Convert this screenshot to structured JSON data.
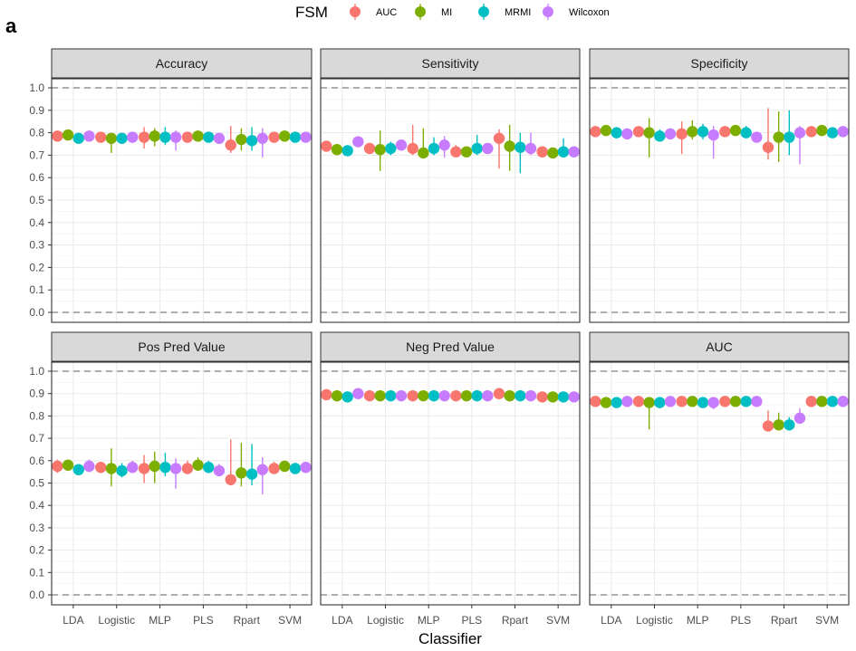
{
  "panel_tag": "a",
  "legend": {
    "title": "FSM",
    "entries": [
      {
        "label": "AUC",
        "color": "#F8766D"
      },
      {
        "label": "MI",
        "color": "#7CAE00"
      },
      {
        "label": "MRMI",
        "color": "#00BFC4"
      },
      {
        "label": "Wilcoxon",
        "color": "#C77CFF"
      }
    ]
  },
  "chart_data": {
    "type": "scatter",
    "subtype": "faceted point-range",
    "xlabel": "Classifier",
    "ylabel": "",
    "categories": [
      "LDA",
      "Logistic",
      "MLP",
      "PLS",
      "Rpart",
      "SVM"
    ],
    "ylim": [
      0,
      1
    ],
    "y_ticks": [
      "0.0",
      "0.1",
      "0.2",
      "0.3",
      "0.4",
      "0.5",
      "0.6",
      "0.7",
      "0.8",
      "0.9",
      "1.0"
    ],
    "y_tick_values": [
      0,
      0.1,
      0.2,
      0.3,
      0.4,
      0.5,
      0.6,
      0.7,
      0.8,
      0.9,
      1.0
    ],
    "reference_lines": [
      0,
      1
    ],
    "grid": true,
    "legend_position": "top",
    "series_names": [
      "AUC",
      "MI",
      "MRMI",
      "Wilcoxon"
    ],
    "facets": [
      {
        "title": "Accuracy",
        "series": [
          {
            "name": "AUC",
            "values": [
              0.785,
              0.78,
              0.78,
              0.78,
              0.745,
              0.78
            ],
            "low": [
              0.775,
              0.765,
              0.73,
              0.765,
              0.71,
              0.77
            ],
            "high": [
              0.795,
              0.795,
              0.825,
              0.8,
              0.83,
              0.79
            ]
          },
          {
            "name": "MI",
            "values": [
              0.79,
              0.775,
              0.785,
              0.785,
              0.77,
              0.785
            ],
            "low": [
              0.775,
              0.71,
              0.74,
              0.77,
              0.72,
              0.77
            ],
            "high": [
              0.8,
              0.795,
              0.82,
              0.8,
              0.82,
              0.795
            ]
          },
          {
            "name": "MRMI",
            "values": [
              0.775,
              0.775,
              0.78,
              0.78,
              0.765,
              0.78
            ],
            "low": [
              0.76,
              0.755,
              0.745,
              0.765,
              0.72,
              0.765
            ],
            "high": [
              0.795,
              0.795,
              0.825,
              0.8,
              0.825,
              0.795
            ]
          },
          {
            "name": "Wilcoxon",
            "values": [
              0.785,
              0.78,
              0.78,
              0.775,
              0.775,
              0.78
            ],
            "low": [
              0.775,
              0.77,
              0.72,
              0.76,
              0.69,
              0.77
            ],
            "high": [
              0.8,
              0.795,
              0.81,
              0.79,
              0.82,
              0.795
            ]
          }
        ]
      },
      {
        "title": "Sensitivity",
        "series": [
          {
            "name": "AUC",
            "values": [
              0.74,
              0.73,
              0.73,
              0.715,
              0.775,
              0.715
            ],
            "low": [
              0.72,
              0.71,
              0.7,
              0.7,
              0.64,
              0.7
            ],
            "high": [
              0.76,
              0.75,
              0.835,
              0.745,
              0.815,
              0.73
            ]
          },
          {
            "name": "MI",
            "values": [
              0.725,
              0.725,
              0.71,
              0.715,
              0.74,
              0.71
            ],
            "low": [
              0.71,
              0.63,
              0.69,
              0.7,
              0.63,
              0.7
            ],
            "high": [
              0.74,
              0.81,
              0.82,
              0.73,
              0.835,
              0.725
            ]
          },
          {
            "name": "MRMI",
            "values": [
              0.72,
              0.73,
              0.73,
              0.73,
              0.735,
              0.715
            ],
            "low": [
              0.705,
              0.7,
              0.7,
              0.7,
              0.62,
              0.7
            ],
            "high": [
              0.74,
              0.76,
              0.78,
              0.79,
              0.8,
              0.775
            ]
          },
          {
            "name": "Wilcoxon",
            "values": [
              0.76,
              0.745,
              0.745,
              0.73,
              0.73,
              0.715
            ],
            "low": [
              0.74,
              0.72,
              0.69,
              0.71,
              0.7,
              0.7
            ],
            "high": [
              0.775,
              0.76,
              0.785,
              0.745,
              0.8,
              0.73
            ]
          }
        ]
      },
      {
        "title": "Specificity",
        "series": [
          {
            "name": "AUC",
            "values": [
              0.805,
              0.805,
              0.795,
              0.805,
              0.735,
              0.805
            ],
            "low": [
              0.79,
              0.79,
              0.705,
              0.79,
              0.68,
              0.79
            ],
            "high": [
              0.82,
              0.82,
              0.85,
              0.825,
              0.91,
              0.825
            ]
          },
          {
            "name": "MI",
            "values": [
              0.81,
              0.8,
              0.805,
              0.81,
              0.78,
              0.81
            ],
            "low": [
              0.8,
              0.69,
              0.77,
              0.79,
              0.67,
              0.8
            ],
            "high": [
              0.825,
              0.865,
              0.855,
              0.83,
              0.895,
              0.83
            ]
          },
          {
            "name": "MRMI",
            "values": [
              0.8,
              0.785,
              0.805,
              0.8,
              0.78,
              0.8
            ],
            "low": [
              0.775,
              0.77,
              0.77,
              0.78,
              0.7,
              0.785
            ],
            "high": [
              0.815,
              0.815,
              0.84,
              0.83,
              0.9,
              0.82
            ]
          },
          {
            "name": "Wilcoxon",
            "values": [
              0.795,
              0.795,
              0.79,
              0.78,
              0.8,
              0.805
            ],
            "low": [
              0.78,
              0.78,
              0.685,
              0.76,
              0.66,
              0.79
            ],
            "high": [
              0.81,
              0.815,
              0.83,
              0.8,
              0.83,
              0.82
            ]
          }
        ]
      },
      {
        "title": "Pos Pred Value",
        "series": [
          {
            "name": "AUC",
            "values": [
              0.575,
              0.57,
              0.565,
              0.565,
              0.515,
              0.565
            ],
            "low": [
              0.545,
              0.545,
              0.5,
              0.54,
              0.49,
              0.545
            ],
            "high": [
              0.605,
              0.595,
              0.625,
              0.6,
              0.695,
              0.595
            ]
          },
          {
            "name": "MI",
            "values": [
              0.58,
              0.565,
              0.575,
              0.58,
              0.545,
              0.575
            ],
            "low": [
              0.56,
              0.485,
              0.5,
              0.56,
              0.485,
              0.56
            ],
            "high": [
              0.6,
              0.655,
              0.64,
              0.615,
              0.68,
              0.6
            ]
          },
          {
            "name": "MRMI",
            "values": [
              0.56,
              0.555,
              0.57,
              0.57,
              0.54,
              0.565
            ],
            "low": [
              0.535,
              0.525,
              0.53,
              0.545,
              0.49,
              0.545
            ],
            "high": [
              0.585,
              0.59,
              0.635,
              0.6,
              0.675,
              0.59
            ]
          },
          {
            "name": "Wilcoxon",
            "values": [
              0.575,
              0.57,
              0.565,
              0.555,
              0.56,
              0.57
            ],
            "low": [
              0.55,
              0.545,
              0.475,
              0.535,
              0.45,
              0.55
            ],
            "high": [
              0.605,
              0.6,
              0.61,
              0.585,
              0.615,
              0.59
            ]
          }
        ]
      },
      {
        "title": "Neg Pred Value",
        "series": [
          {
            "name": "AUC",
            "values": [
              0.895,
              0.89,
              0.89,
              0.89,
              0.9,
              0.885
            ],
            "low": [
              0.885,
              0.88,
              0.875,
              0.88,
              0.89,
              0.875
            ],
            "high": [
              0.905,
              0.9,
              0.905,
              0.9,
              0.91,
              0.895
            ]
          },
          {
            "name": "MI",
            "values": [
              0.89,
              0.89,
              0.89,
              0.89,
              0.89,
              0.885
            ],
            "low": [
              0.88,
              0.88,
              0.88,
              0.88,
              0.88,
              0.875
            ],
            "high": [
              0.9,
              0.9,
              0.9,
              0.9,
              0.9,
              0.895
            ]
          },
          {
            "name": "MRMI",
            "values": [
              0.885,
              0.89,
              0.89,
              0.89,
              0.89,
              0.885
            ],
            "low": [
              0.875,
              0.88,
              0.88,
              0.88,
              0.88,
              0.875
            ],
            "high": [
              0.895,
              0.9,
              0.9,
              0.9,
              0.9,
              0.895
            ]
          },
          {
            "name": "Wilcoxon",
            "values": [
              0.9,
              0.89,
              0.89,
              0.89,
              0.89,
              0.885
            ],
            "low": [
              0.89,
              0.88,
              0.88,
              0.88,
              0.88,
              0.875
            ],
            "high": [
              0.91,
              0.9,
              0.9,
              0.9,
              0.9,
              0.895
            ]
          }
        ]
      },
      {
        "title": "AUC",
        "series": [
          {
            "name": "AUC",
            "values": [
              0.865,
              0.865,
              0.865,
              0.865,
              0.755,
              0.865
            ],
            "low": [
              0.855,
              0.855,
              0.855,
              0.855,
              0.745,
              0.855
            ],
            "high": [
              0.875,
              0.875,
              0.875,
              0.875,
              0.825,
              0.875
            ]
          },
          {
            "name": "MI",
            "values": [
              0.86,
              0.86,
              0.865,
              0.865,
              0.76,
              0.865
            ],
            "low": [
              0.85,
              0.74,
              0.855,
              0.855,
              0.745,
              0.855
            ],
            "high": [
              0.87,
              0.875,
              0.875,
              0.875,
              0.815,
              0.875
            ]
          },
          {
            "name": "MRMI",
            "values": [
              0.86,
              0.86,
              0.86,
              0.865,
              0.76,
              0.865
            ],
            "low": [
              0.85,
              0.835,
              0.85,
              0.855,
              0.745,
              0.855
            ],
            "high": [
              0.87,
              0.87,
              0.87,
              0.875,
              0.795,
              0.875
            ]
          },
          {
            "name": "Wilcoxon",
            "values": [
              0.865,
              0.865,
              0.86,
              0.865,
              0.79,
              0.865
            ],
            "low": [
              0.855,
              0.855,
              0.83,
              0.855,
              0.765,
              0.855
            ],
            "high": [
              0.875,
              0.875,
              0.87,
              0.875,
              0.835,
              0.875
            ]
          }
        ]
      }
    ]
  }
}
